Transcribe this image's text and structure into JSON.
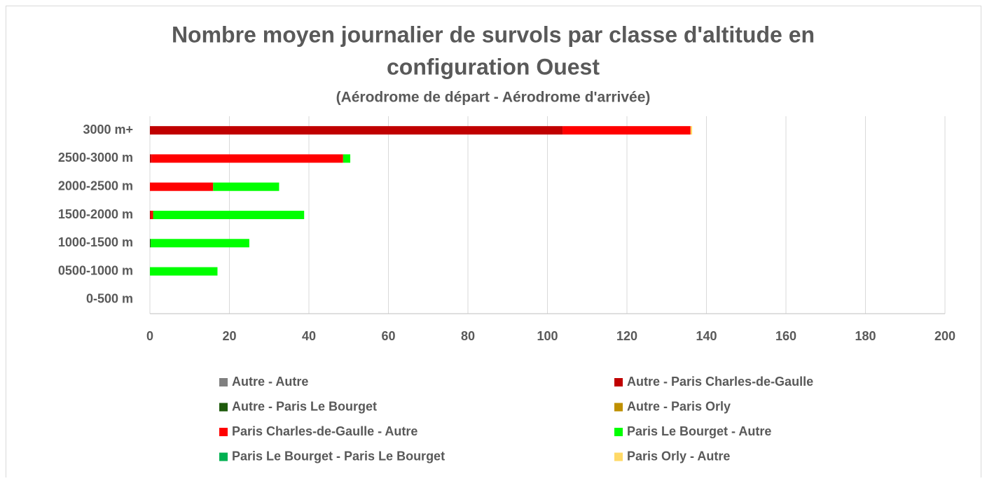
{
  "chart_data": {
    "type": "stacked-bar-horizontal",
    "title": "Nombre moyen journalier de survols par classe d'altitude en configuration Ouest",
    "subtitle": "(Aérodrome de départ - Aérodrome d'arrivée)",
    "categories": [
      "3000 m+",
      "2500-3000 m",
      "2000-2500 m",
      "1500-2000 m",
      "1000-1500 m",
      "0500-1000 m",
      "0-500 m"
    ],
    "series": [
      {
        "name": "Autre - Autre",
        "color": "#808080",
        "values": [
          0,
          0,
          0,
          0,
          0,
          0,
          0
        ]
      },
      {
        "name": "Autre - Paris Charles-de-Gaulle",
        "color": "#c00000",
        "values": [
          103.8,
          0.4,
          0,
          0.3,
          0,
          0,
          0
        ]
      },
      {
        "name": "Autre - Paris Le Bourget",
        "color": "#1e5a0c",
        "values": [
          0,
          0,
          0,
          0,
          0.2,
          0,
          0
        ]
      },
      {
        "name": "Autre - Paris Orly",
        "color": "#bf9000",
        "values": [
          0,
          0,
          0,
          0,
          0,
          0,
          0
        ]
      },
      {
        "name": "Paris Charles-de-Gaulle - Autre",
        "color": "#ff0000",
        "values": [
          32.2,
          48.2,
          15.9,
          0.5,
          0,
          0,
          0
        ]
      },
      {
        "name": "Paris Le Bourget - Autre",
        "color": "#00ff00",
        "values": [
          0,
          1.8,
          16.6,
          38,
          24.8,
          17,
          0
        ]
      },
      {
        "name": "Paris Le Bourget - Paris Le Bourget",
        "color": "#00b050",
        "values": [
          0,
          0,
          0,
          0,
          0,
          0,
          0
        ]
      },
      {
        "name": "Paris Orly - Autre",
        "color": "#ffd966",
        "values": [
          0.4,
          0,
          0,
          0,
          0,
          0,
          0
        ]
      }
    ],
    "xlim": [
      0,
      200
    ],
    "xticks": [
      0,
      20,
      40,
      60,
      80,
      100,
      120,
      140,
      160,
      180,
      200
    ],
    "grid": true
  }
}
